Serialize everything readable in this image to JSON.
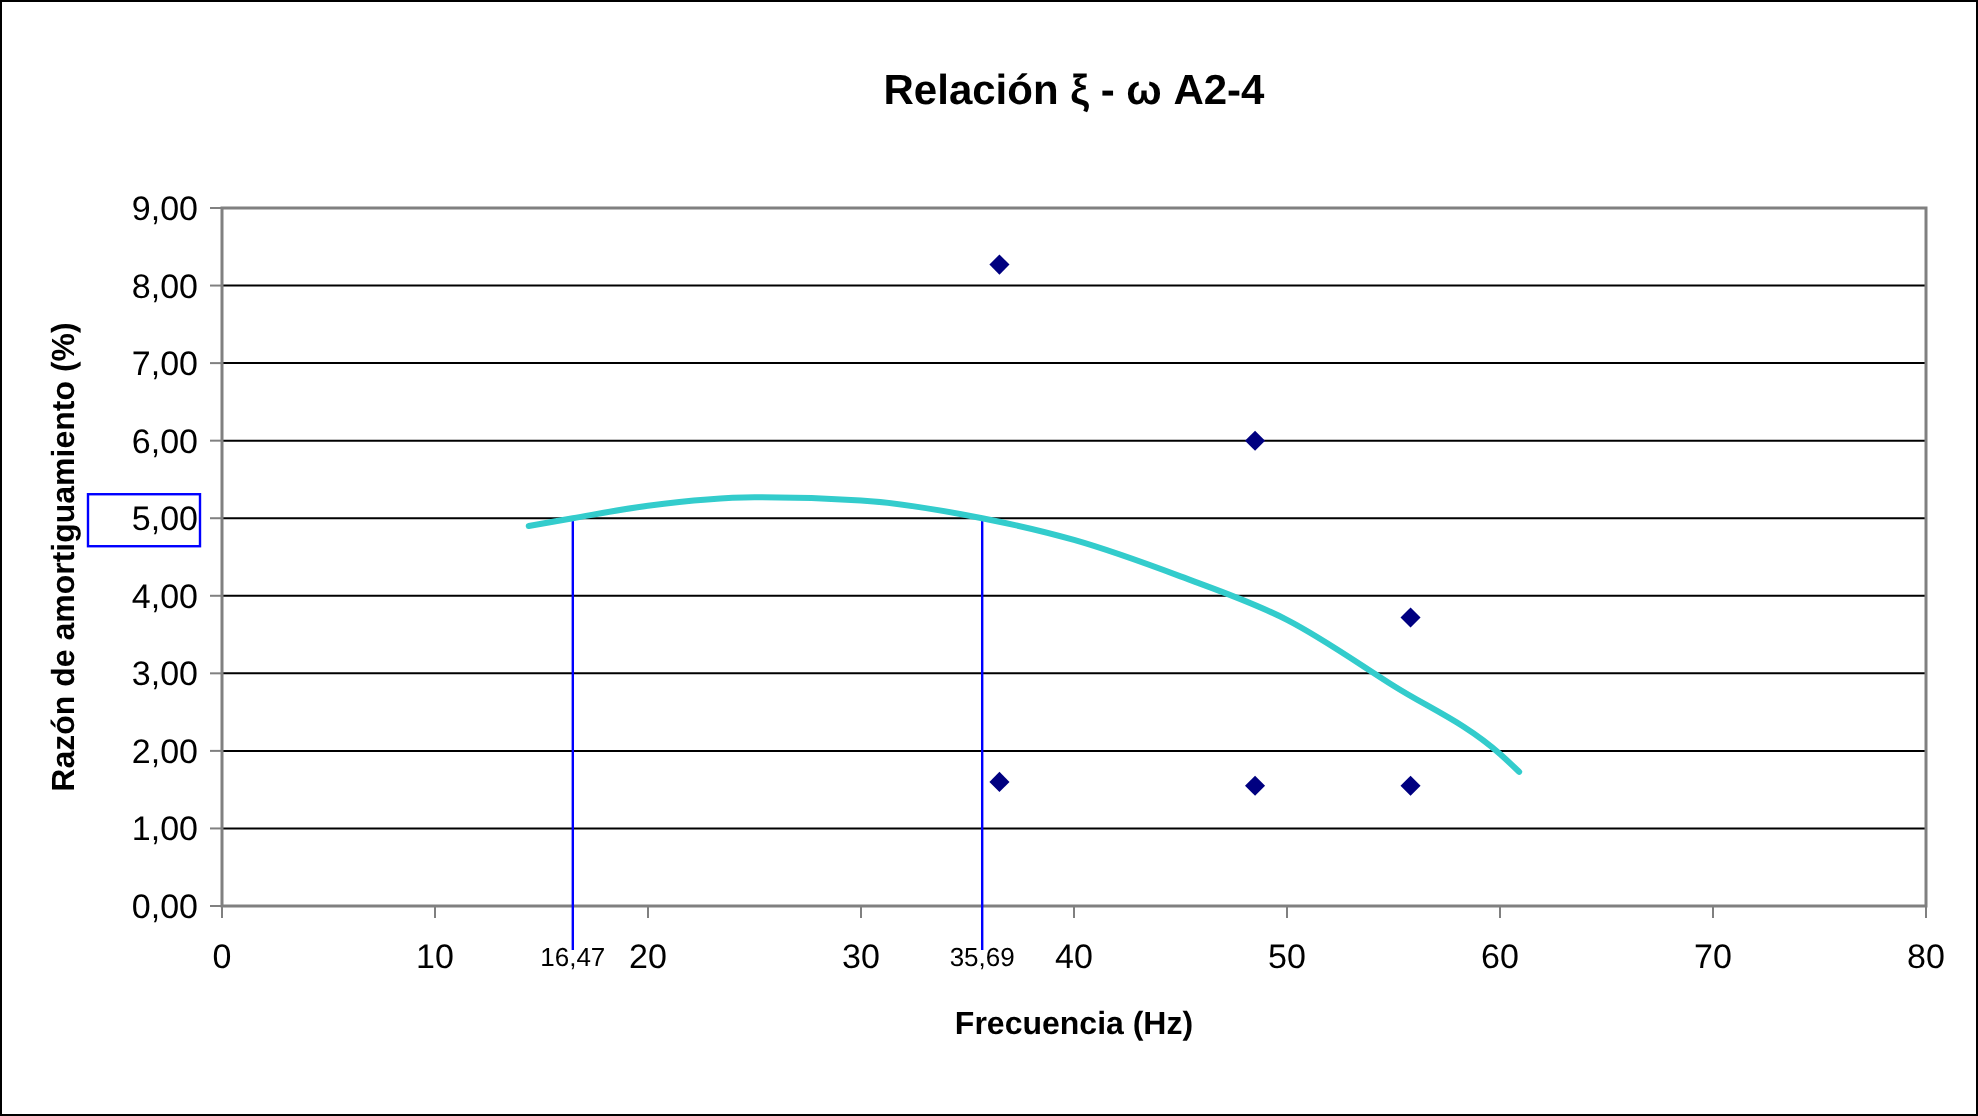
{
  "chart_data": {
    "type": "scatter",
    "title": "Relación ξ - ω A2-4",
    "xlabel": "Frecuencia (Hz)",
    "ylabel": "Razón de amortiguamiento (%)",
    "xlim": [
      0,
      80
    ],
    "xticks": [
      0,
      10,
      20,
      30,
      40,
      50,
      60,
      70,
      80
    ],
    "ylim": [
      0,
      9
    ],
    "yticks": [
      {
        "value": 0,
        "label": "0,00"
      },
      {
        "value": 1,
        "label": "1,00"
      },
      {
        "value": 2,
        "label": "2,00"
      },
      {
        "value": 3,
        "label": "3,00"
      },
      {
        "value": 4,
        "label": "4,00"
      },
      {
        "value": 5,
        "label": "5,00"
      },
      {
        "value": 6,
        "label": "6,00"
      },
      {
        "value": 7,
        "label": "7,00"
      },
      {
        "value": 8,
        "label": "8,00"
      },
      {
        "value": 9,
        "label": "9,00"
      }
    ],
    "grid": "y",
    "marker": "diamond",
    "series": [
      {
        "color": "#000080",
        "x": [
          36.5,
          36.5,
          48.5,
          48.5,
          55.8,
          55.8
        ],
        "values": [
          8.27,
          1.6,
          6.0,
          1.55,
          3.72,
          1.55
        ]
      },
      {
        "type": "line",
        "color": "#33cccc",
        "marker": "none",
        "x": [
          14.4,
          16.47,
          20,
          25,
          30,
          35.69,
          40,
          45,
          50,
          55,
          60,
          60.9
        ],
        "values": [
          4.9,
          5.0,
          5.16,
          5.27,
          5.23,
          5.0,
          4.72,
          4.25,
          3.69,
          2.84,
          1.96,
          1.73
        ]
      }
    ],
    "ref_lines": [
      {
        "axis": "x",
        "value": 16.47,
        "label": "16,47",
        "color": "#0000ff"
      },
      {
        "axis": "x",
        "value": 35.69,
        "label": "35,69",
        "color": "#0000ff"
      }
    ]
  }
}
